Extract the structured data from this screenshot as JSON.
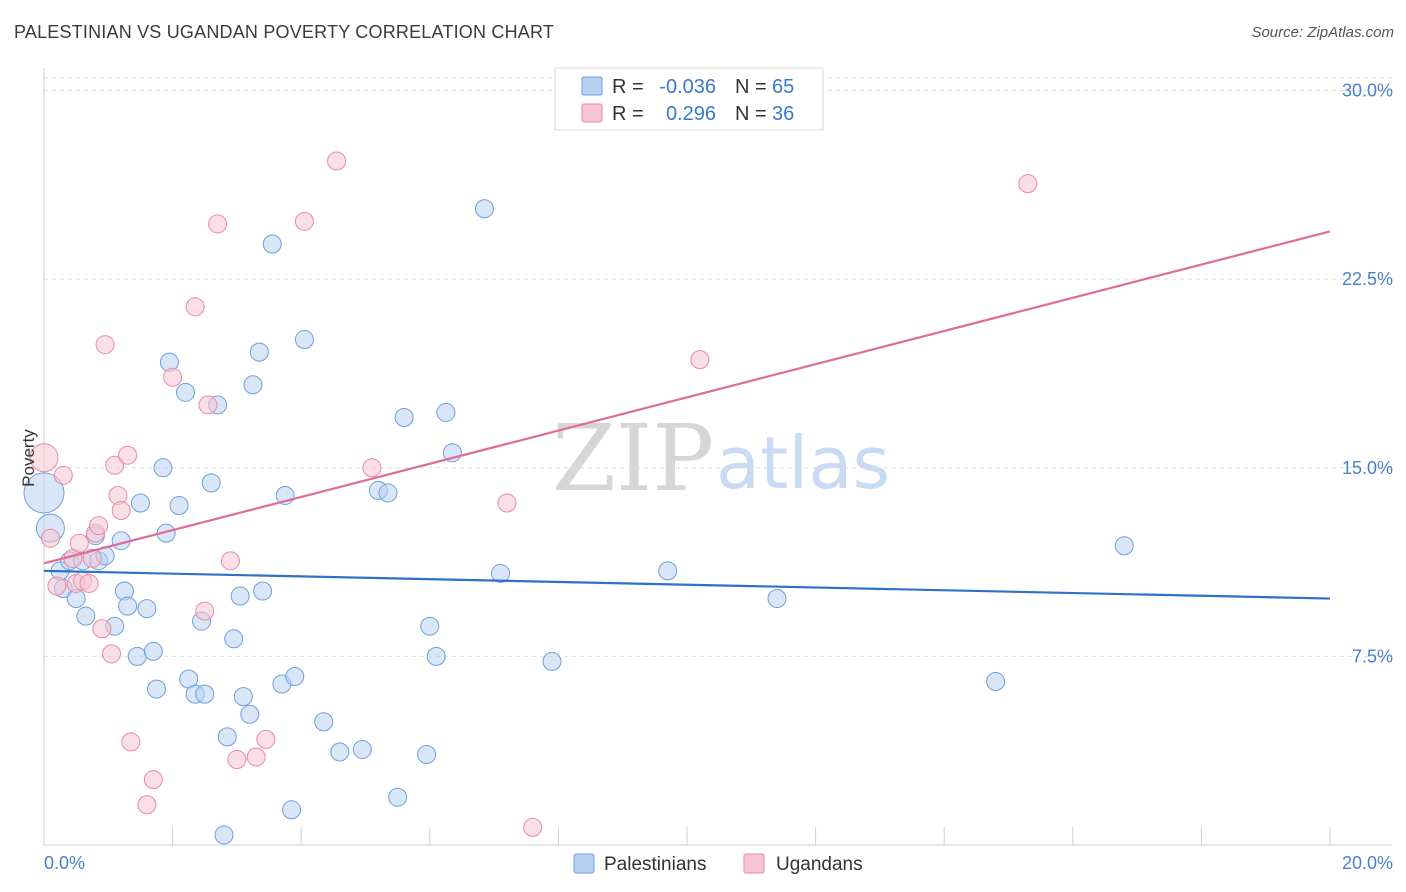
{
  "header": {
    "title": "PALESTINIAN VS UGANDAN POVERTY CORRELATION CHART",
    "source": "Source: ZipAtlas.com"
  },
  "colors": {
    "blue_fill": "#b8d1f2",
    "blue_stroke": "#6f9fdc",
    "blue_line": "#2f70c8",
    "pink_fill": "#f6c4d3",
    "pink_stroke": "#e98aa8",
    "pink_line": "#e06b96",
    "grid": "#dddddd",
    "tick_label": "#4a7fd0"
  },
  "legend": {
    "rows": [
      {
        "r_label": "R =",
        "r_value": "-0.036",
        "n_label": "N =",
        "n_value": "65",
        "series": "blue"
      },
      {
        "r_label": "R =",
        "r_value": "0.296",
        "n_label": "N =",
        "n_value": "36",
        "series": "pink"
      }
    ]
  },
  "bottom_legend": {
    "items": [
      "Palestinians",
      "Ugandans"
    ]
  },
  "watermark": {
    "zip": "ZIP",
    "atlas": "atlas"
  },
  "chart_data": {
    "type": "scatter",
    "title": "PALESTINIAN VS UGANDAN POVERTY CORRELATION CHART",
    "xlabel": "",
    "ylabel": "Poverty",
    "xlim": [
      0,
      20
    ],
    "ylim": [
      0,
      30.5
    ],
    "x_tick_labels": [
      "0.0%",
      "20.0%"
    ],
    "y_ticks": [
      7.5,
      15.0,
      22.5,
      30.0
    ],
    "y_tick_labels": [
      "7.5%",
      "15.0%",
      "22.5%",
      "30.0%"
    ],
    "grid": true,
    "legend_position": "top-center",
    "series": [
      {
        "name": "Palestinians",
        "color": "blue",
        "r": -0.036,
        "n": 65,
        "trend": {
          "x": [
            0,
            20
          ],
          "y": [
            10.9,
            9.8
          ]
        },
        "points": [
          [
            0.0,
            14.0,
            3
          ],
          [
            0.1,
            12.6,
            2
          ],
          [
            0.25,
            10.9,
            1
          ],
          [
            0.3,
            10.2,
            1
          ],
          [
            0.4,
            11.3,
            1
          ],
          [
            0.5,
            9.8,
            1
          ],
          [
            0.6,
            11.3,
            1
          ],
          [
            0.65,
            9.1,
            1
          ],
          [
            0.8,
            12.3,
            1
          ],
          [
            0.85,
            11.3,
            1
          ],
          [
            0.95,
            11.5,
            1
          ],
          [
            1.1,
            8.7,
            1
          ],
          [
            1.2,
            12.1,
            1
          ],
          [
            1.25,
            10.1,
            1
          ],
          [
            1.3,
            9.5,
            1
          ],
          [
            1.45,
            7.5,
            1
          ],
          [
            1.5,
            13.6,
            1
          ],
          [
            1.6,
            9.4,
            1
          ],
          [
            1.7,
            7.7,
            1
          ],
          [
            1.75,
            6.2,
            1
          ],
          [
            1.85,
            15.0,
            1
          ],
          [
            1.9,
            12.4,
            1
          ],
          [
            1.95,
            19.2,
            1
          ],
          [
            2.1,
            13.5,
            1
          ],
          [
            2.2,
            18.0,
            1
          ],
          [
            2.25,
            6.6,
            1
          ],
          [
            2.35,
            6.0,
            1
          ],
          [
            2.45,
            8.9,
            1
          ],
          [
            2.5,
            6.0,
            1
          ],
          [
            2.6,
            14.4,
            1
          ],
          [
            2.7,
            17.5,
            1
          ],
          [
            2.85,
            4.3,
            1
          ],
          [
            2.95,
            8.2,
            1
          ],
          [
            3.05,
            9.9,
            1
          ],
          [
            3.2,
            5.2,
            1
          ],
          [
            3.25,
            18.3,
            1
          ],
          [
            3.35,
            19.6,
            1
          ],
          [
            3.4,
            10.1,
            1
          ],
          [
            3.55,
            23.9,
            1
          ],
          [
            3.7,
            6.4,
            1
          ],
          [
            3.75,
            13.9,
            1
          ],
          [
            3.9,
            6.7,
            1
          ],
          [
            3.85,
            1.4,
            1
          ],
          [
            4.05,
            20.1,
            1
          ],
          [
            4.35,
            4.9,
            1
          ],
          [
            4.6,
            3.7,
            1
          ],
          [
            4.95,
            3.8,
            1
          ],
          [
            5.2,
            14.1,
            1
          ],
          [
            5.35,
            14.0,
            1
          ],
          [
            5.5,
            1.9,
            1
          ],
          [
            5.6,
            17.0,
            1
          ],
          [
            5.95,
            3.6,
            1
          ],
          [
            6.0,
            8.7,
            1
          ],
          [
            6.1,
            7.5,
            1
          ],
          [
            6.25,
            17.2,
            1
          ],
          [
            6.35,
            15.6,
            1
          ],
          [
            6.85,
            25.3,
            1
          ],
          [
            7.1,
            10.8,
            1
          ],
          [
            7.9,
            7.3,
            1
          ],
          [
            9.7,
            10.9,
            1
          ],
          [
            2.8,
            0.4,
            1
          ],
          [
            11.4,
            9.8,
            1
          ],
          [
            14.8,
            6.5,
            1
          ],
          [
            16.8,
            11.9,
            1
          ],
          [
            3.1,
            5.9,
            1
          ]
        ]
      },
      {
        "name": "Ugandans",
        "color": "pink",
        "r": 0.296,
        "n": 36,
        "trend": {
          "x": [
            0,
            20
          ],
          "y": [
            11.2,
            24.4
          ]
        },
        "points": [
          [
            0.0,
            15.4,
            2
          ],
          [
            0.1,
            12.2,
            1
          ],
          [
            0.2,
            10.3,
            1
          ],
          [
            0.3,
            14.7,
            1
          ],
          [
            0.45,
            11.4,
            1
          ],
          [
            0.5,
            10.4,
            1
          ],
          [
            0.55,
            12.0,
            1
          ],
          [
            0.6,
            10.5,
            1
          ],
          [
            0.7,
            10.4,
            1
          ],
          [
            0.75,
            11.4,
            1
          ],
          [
            0.8,
            12.4,
            1
          ],
          [
            0.85,
            12.7,
            1
          ],
          [
            0.9,
            8.6,
            1
          ],
          [
            0.95,
            19.9,
            1
          ],
          [
            1.05,
            7.6,
            1
          ],
          [
            1.1,
            15.1,
            1
          ],
          [
            1.15,
            13.9,
            1
          ],
          [
            1.2,
            13.3,
            1
          ],
          [
            1.3,
            15.5,
            1
          ],
          [
            1.35,
            4.1,
            1
          ],
          [
            1.6,
            1.6,
            1
          ],
          [
            1.7,
            2.6,
            1
          ],
          [
            2.0,
            18.6,
            1
          ],
          [
            2.35,
            21.4,
            1
          ],
          [
            2.5,
            9.3,
            1
          ],
          [
            2.55,
            17.5,
            1
          ],
          [
            2.7,
            24.7,
            1
          ],
          [
            2.9,
            11.3,
            1
          ],
          [
            3.0,
            3.4,
            1
          ],
          [
            3.3,
            3.5,
            1
          ],
          [
            3.45,
            4.2,
            1
          ],
          [
            4.05,
            24.8,
            1
          ],
          [
            4.55,
            27.2,
            1
          ],
          [
            5.1,
            15.0,
            1
          ],
          [
            7.2,
            13.6,
            1
          ],
          [
            10.2,
            19.3,
            1
          ]
        ]
      }
    ],
    "extra_points_pink": [
      [
        7.6,
        0.7,
        1
      ],
      [
        15.3,
        26.3,
        1
      ]
    ]
  }
}
